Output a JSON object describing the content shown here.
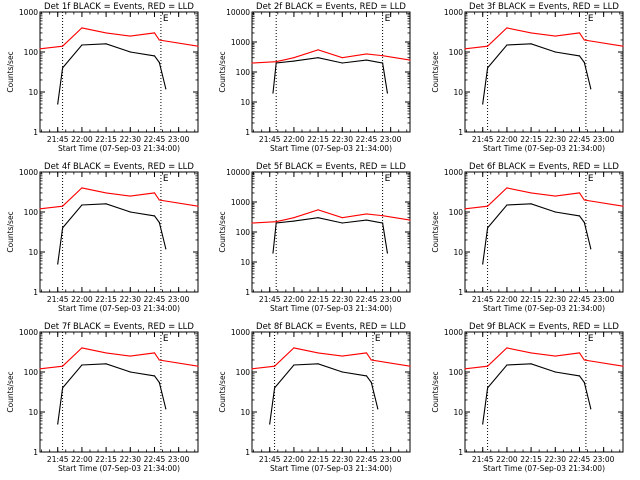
{
  "chart_data": [
    {
      "type": "line",
      "title": "Det 1f BLACK = Events, RED = LLD",
      "ylabel": "Counts/sec",
      "xlabel": "Start Time (07-Sep-03 21:34:00)",
      "yscale": "log",
      "ylim": [
        1,
        1000
      ],
      "ytick_labels": [
        "1",
        "10",
        "100",
        "1000"
      ],
      "xlim": [
        "21:34",
        "23:12"
      ],
      "xtick_labels": [
        "21:45",
        "22:00",
        "22:15",
        "22:30",
        "22:45",
        "23:00"
      ],
      "markers": [
        {
          "time": "21:48",
          "label": ""
        },
        {
          "time": "22:49",
          "label": "E"
        }
      ],
      "series": [
        {
          "name": "Events",
          "color": "#000000",
          "x": [
            "21:45",
            "21:48",
            "22:00",
            "22:15",
            "22:30",
            "22:45",
            "22:48",
            "22:52"
          ],
          "y": [
            5,
            40,
            150,
            160,
            100,
            80,
            55,
            12
          ]
        },
        {
          "name": "LLD",
          "color": "#ff0000",
          "x": [
            "21:34",
            "21:48",
            "22:00",
            "22:15",
            "22:30",
            "22:45",
            "22:48",
            "23:12"
          ],
          "y": [
            120,
            140,
            400,
            300,
            250,
            300,
            200,
            140
          ]
        }
      ]
    },
    {
      "type": "line",
      "title": "Det 2f BLACK = Events, RED = LLD",
      "ylabel": "Counts/sec",
      "xlabel": "Start Time (07-Sep-03 21:34:00)",
      "yscale": "log",
      "ylim": [
        1,
        10000
      ],
      "ytick_labels": [
        "1",
        "10",
        "100",
        "1000",
        "10000"
      ],
      "xlim": [
        "21:34",
        "23:12"
      ],
      "xtick_labels": [
        "21:45",
        "22:00",
        "22:15",
        "22:30",
        "22:45",
        "23:00"
      ],
      "markers": [
        {
          "time": "21:49",
          "label": ""
        },
        {
          "time": "22:55",
          "label": "E"
        }
      ],
      "series": [
        {
          "name": "Events",
          "color": "#000000",
          "x": [
            "21:47",
            "21:49",
            "22:00",
            "22:15",
            "22:30",
            "22:45",
            "22:55",
            "22:58"
          ],
          "y": [
            20,
            200,
            230,
            300,
            200,
            250,
            200,
            20
          ]
        },
        {
          "name": "LLD",
          "color": "#ff0000",
          "x": [
            "21:34",
            "21:49",
            "22:00",
            "22:15",
            "22:30",
            "22:45",
            "22:55",
            "23:12"
          ],
          "y": [
            200,
            220,
            300,
            550,
            300,
            400,
            350,
            250
          ]
        }
      ]
    },
    {
      "type": "line",
      "title": "Det 3f BLACK = Events, RED = LLD",
      "ylabel": "Counts/sec",
      "xlabel": "Start Time (07-Sep-03 21:34:00)",
      "yscale": "log",
      "ylim": [
        1,
        1000
      ],
      "ytick_labels": [
        "1",
        "10",
        "100",
        "1000"
      ],
      "xlim": [
        "21:34",
        "23:12"
      ],
      "xtick_labels": [
        "21:45",
        "22:00",
        "22:15",
        "22:30",
        "22:45",
        "23:00"
      ],
      "markers": [
        {
          "time": "21:48",
          "label": ""
        },
        {
          "time": "22:49",
          "label": "E"
        }
      ],
      "series": [
        {
          "name": "Events",
          "color": "#000000",
          "x": [
            "21:45",
            "21:48",
            "22:00",
            "22:15",
            "22:30",
            "22:45",
            "22:48",
            "22:52"
          ],
          "y": [
            5,
            40,
            150,
            160,
            100,
            80,
            55,
            12
          ]
        },
        {
          "name": "LLD",
          "color": "#ff0000",
          "x": [
            "21:34",
            "21:48",
            "22:00",
            "22:15",
            "22:30",
            "22:45",
            "22:48",
            "23:12"
          ],
          "y": [
            120,
            140,
            400,
            300,
            250,
            300,
            200,
            140
          ]
        }
      ]
    },
    {
      "type": "line",
      "title": "Det 4f BLACK = Events, RED = LLD",
      "ylabel": "Counts/sec",
      "xlabel": "Start Time (07-Sep-03 21:34:00)",
      "yscale": "log",
      "ylim": [
        1,
        1000
      ],
      "ytick_labels": [
        "1",
        "10",
        "100",
        "1000"
      ],
      "xlim": [
        "21:34",
        "23:12"
      ],
      "xtick_labels": [
        "21:45",
        "22:00",
        "22:15",
        "22:30",
        "22:45",
        "23:00"
      ],
      "markers": [
        {
          "time": "21:48",
          "label": ""
        },
        {
          "time": "22:49",
          "label": "E"
        }
      ],
      "series": [
        {
          "name": "Events",
          "color": "#000000",
          "x": [
            "21:45",
            "21:48",
            "22:00",
            "22:15",
            "22:30",
            "22:45",
            "22:48",
            "22:52"
          ],
          "y": [
            5,
            40,
            150,
            160,
            100,
            80,
            55,
            12
          ]
        },
        {
          "name": "LLD",
          "color": "#ff0000",
          "x": [
            "21:34",
            "21:48",
            "22:00",
            "22:15",
            "22:30",
            "22:45",
            "22:48",
            "23:12"
          ],
          "y": [
            120,
            140,
            400,
            300,
            250,
            300,
            200,
            140
          ]
        }
      ]
    },
    {
      "type": "line",
      "title": "Det 5f BLACK = Events, RED = LLD",
      "ylabel": "Counts/sec",
      "xlabel": "Start Time (07-Sep-03 21:34:00)",
      "yscale": "log",
      "ylim": [
        1,
        10000
      ],
      "ytick_labels": [
        "1",
        "10",
        "100",
        "1000",
        "10000"
      ],
      "xlim": [
        "21:34",
        "23:12"
      ],
      "xtick_labels": [
        "21:45",
        "22:00",
        "22:15",
        "22:30",
        "22:45",
        "23:00"
      ],
      "markers": [
        {
          "time": "21:49",
          "label": ""
        },
        {
          "time": "22:55",
          "label": "E"
        }
      ],
      "series": [
        {
          "name": "Events",
          "color": "#000000",
          "x": [
            "21:47",
            "21:49",
            "22:00",
            "22:15",
            "22:30",
            "22:45",
            "22:55",
            "22:58"
          ],
          "y": [
            20,
            200,
            230,
            300,
            200,
            250,
            200,
            20
          ]
        },
        {
          "name": "LLD",
          "color": "#ff0000",
          "x": [
            "21:34",
            "21:49",
            "22:00",
            "22:15",
            "22:30",
            "22:45",
            "22:55",
            "23:12"
          ],
          "y": [
            200,
            220,
            300,
            550,
            300,
            400,
            350,
            250
          ]
        }
      ]
    },
    {
      "type": "line",
      "title": "Det 6f BLACK = Events, RED = LLD",
      "ylabel": "Counts/sec",
      "xlabel": "Start Time (07-Sep-03 21:34:00)",
      "yscale": "log",
      "ylim": [
        1,
        1000
      ],
      "ytick_labels": [
        "1",
        "10",
        "100",
        "1000"
      ],
      "xlim": [
        "21:34",
        "23:12"
      ],
      "xtick_labels": [
        "21:45",
        "22:00",
        "22:15",
        "22:30",
        "22:45",
        "23:00"
      ],
      "markers": [
        {
          "time": "21:48",
          "label": ""
        },
        {
          "time": "22:49",
          "label": "E"
        }
      ],
      "series": [
        {
          "name": "Events",
          "color": "#000000",
          "x": [
            "21:45",
            "21:48",
            "22:00",
            "22:15",
            "22:30",
            "22:45",
            "22:48",
            "22:52"
          ],
          "y": [
            5,
            40,
            150,
            160,
            100,
            80,
            55,
            12
          ]
        },
        {
          "name": "LLD",
          "color": "#ff0000",
          "x": [
            "21:34",
            "21:48",
            "22:00",
            "22:15",
            "22:30",
            "22:45",
            "22:48",
            "23:12"
          ],
          "y": [
            120,
            140,
            400,
            300,
            250,
            300,
            200,
            140
          ]
        }
      ]
    },
    {
      "type": "line",
      "title": "Det 7f BLACK = Events, RED = LLD",
      "ylabel": "Counts/sec",
      "xlabel": "Start Time (07-Sep-03 21:34:00)",
      "yscale": "log",
      "ylim": [
        1,
        1000
      ],
      "ytick_labels": [
        "1",
        "10",
        "100",
        "1000"
      ],
      "xlim": [
        "21:34",
        "23:12"
      ],
      "xtick_labels": [
        "21:45",
        "22:00",
        "22:15",
        "22:30",
        "22:45",
        "23:00"
      ],
      "markers": [
        {
          "time": "21:48",
          "label": ""
        },
        {
          "time": "22:49",
          "label": "E"
        }
      ],
      "series": [
        {
          "name": "Events",
          "color": "#000000",
          "x": [
            "21:45",
            "21:48",
            "22:00",
            "22:15",
            "22:30",
            "22:45",
            "22:48",
            "22:52"
          ],
          "y": [
            5,
            40,
            150,
            160,
            100,
            80,
            55,
            12
          ]
        },
        {
          "name": "LLD",
          "color": "#ff0000",
          "x": [
            "21:34",
            "21:48",
            "22:00",
            "22:15",
            "22:30",
            "22:45",
            "22:48",
            "23:12"
          ],
          "y": [
            120,
            140,
            400,
            300,
            250,
            300,
            200,
            140
          ]
        }
      ]
    },
    {
      "type": "line",
      "title": "Det 8f BLACK = Events, RED = LLD",
      "ylabel": "Counts/sec",
      "xlabel": "Start Time (07-Sep-03 21:34:00)",
      "yscale": "log",
      "ylim": [
        1,
        1000
      ],
      "ytick_labels": [
        "1",
        "10",
        "100",
        "1000"
      ],
      "xlim": [
        "21:34",
        "23:12"
      ],
      "xtick_labels": [
        "21:45",
        "22:00",
        "22:15",
        "22:30",
        "22:45",
        "23:00"
      ],
      "markers": [
        {
          "time": "21:48",
          "label": ""
        },
        {
          "time": "22:49",
          "label": "E"
        }
      ],
      "series": [
        {
          "name": "Events",
          "color": "#000000",
          "x": [
            "21:45",
            "21:48",
            "22:00",
            "22:15",
            "22:30",
            "22:45",
            "22:48",
            "22:52"
          ],
          "y": [
            5,
            40,
            150,
            160,
            100,
            80,
            55,
            12
          ]
        },
        {
          "name": "LLD",
          "color": "#ff0000",
          "x": [
            "21:34",
            "21:48",
            "22:00",
            "22:15",
            "22:30",
            "22:45",
            "22:48",
            "23:12"
          ],
          "y": [
            120,
            140,
            400,
            300,
            250,
            300,
            200,
            140
          ]
        }
      ]
    },
    {
      "type": "line",
      "title": "Det 9f BLACK = Events, RED = LLD",
      "ylabel": "Counts/sec",
      "xlabel": "Start Time (07-Sep-03 21:34:00)",
      "yscale": "log",
      "ylim": [
        1,
        1000
      ],
      "ytick_labels": [
        "1",
        "10",
        "100",
        "1000"
      ],
      "xlim": [
        "21:34",
        "23:12"
      ],
      "xtick_labels": [
        "21:45",
        "22:00",
        "22:15",
        "22:30",
        "22:45",
        "23:00"
      ],
      "markers": [
        {
          "time": "21:48",
          "label": ""
        },
        {
          "time": "22:49",
          "label": "E"
        }
      ],
      "series": [
        {
          "name": "Events",
          "color": "#000000",
          "x": [
            "21:45",
            "21:48",
            "22:00",
            "22:15",
            "22:30",
            "22:45",
            "22:48",
            "22:52"
          ],
          "y": [
            5,
            40,
            150,
            160,
            100,
            80,
            55,
            12
          ]
        },
        {
          "name": "LLD",
          "color": "#ff0000",
          "x": [
            "21:34",
            "21:48",
            "22:00",
            "22:15",
            "22:30",
            "22:45",
            "22:48",
            "23:12"
          ],
          "y": [
            120,
            140,
            400,
            300,
            250,
            300,
            200,
            140
          ]
        }
      ]
    }
  ]
}
